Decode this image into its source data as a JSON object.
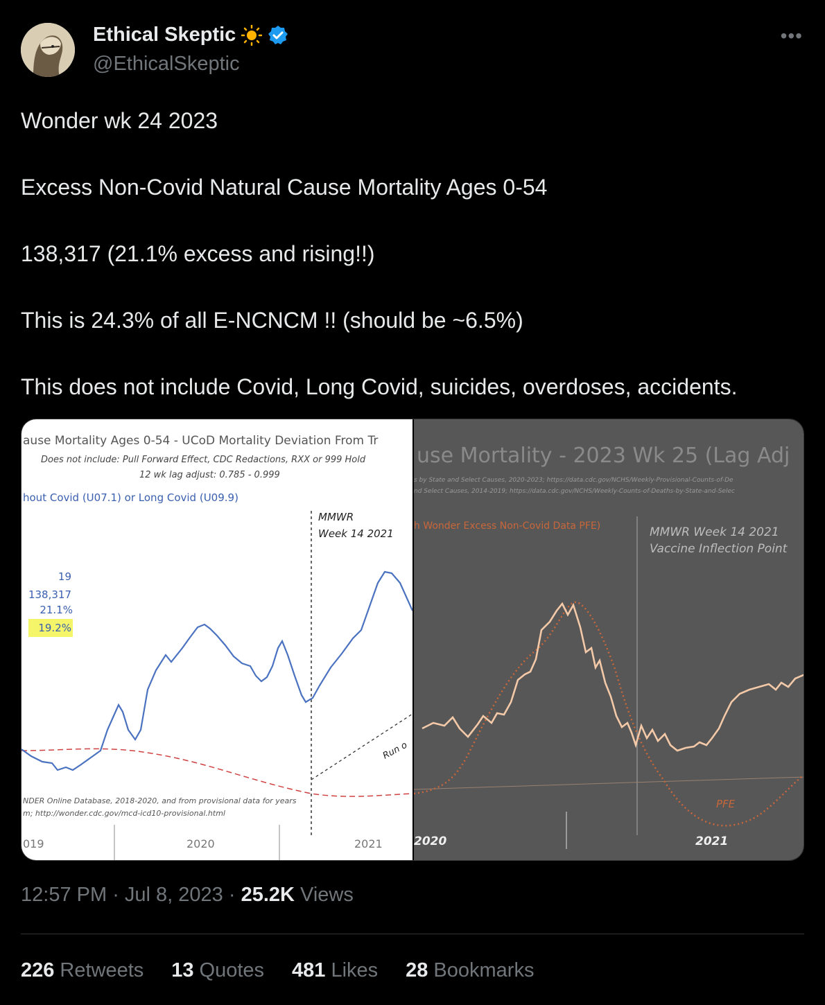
{
  "author": {
    "name": "Ethical Skeptic",
    "handle": "@EthicalSkeptic",
    "verified": true,
    "badge_color": "#1d9bf0",
    "emoji": "sun-icon"
  },
  "tweet": {
    "lines": [
      "Wonder wk 24 2023",
      "",
      "Excess Non-Covid Natural Cause Mortality Ages 0-54",
      "",
      "138,317 (21.1% excess and rising!!)",
      "",
      "This is 24.3% of all E-NCNCM !! (should be ~6.5%)",
      "",
      "This does not include Covid, Long Covid, suicides, overdoses, accidents."
    ]
  },
  "image_left": {
    "title": "ause Mortality Ages 0-54 - UCoD Mortality Deviation From Tr",
    "subtitle1": "Does not include: Pull Forward Effect,  CDC Redactions, RXX or 999 Hold",
    "subtitle2": "12 wk lag adjust: 0.785 - 0.999",
    "series_label": "hout Covid (U07.1) or Long Covid (U09.9)",
    "mmwr_1": "MMWR",
    "mmwr_2": "Week 14 2021",
    "stat_1": "19",
    "stat_2": "138,317",
    "stat_3": "21.1%",
    "stat_4": "19.2%",
    "run_label": "Run o",
    "source_1": "NDER Online Database, 2018-2020, and from provisional data for years",
    "source_2": "m; http://wonder.cdc.gov/mcd-icd10-provisional.html",
    "year_1": "019",
    "year_2": "2020",
    "year_3": "2021",
    "line_color": "#4a72c0",
    "baseline_color": "#d04040",
    "highlight_color": "#f5f56a"
  },
  "image_right": {
    "title": "use Mortality - 2023 Wk 25 (Lag Adj",
    "source_1": "s by State and Select Causes, 2020-2023; https://data.cdc.gov/NCHS/Weekly-Provisional-Counts-of-De",
    "source_2": "nd Select Causes, 2014-2019; https://data.cdc.gov/NCHS/Weekly-Counts-of-Deaths-by-State-and-Selec",
    "series_label": "h Wonder Excess Non-Covid Data PFE)",
    "mmwr_1": "MMWR Week 14 2021",
    "mmwr_2": "Vaccine Inflection Point",
    "pfe_label": "PFE",
    "year_1": "2020",
    "year_2": "2021",
    "line_color": "#f4c9a8",
    "dotted_color": "#c8673a",
    "background": "#575757"
  },
  "meta": {
    "time": "12:57 PM",
    "date": "Jul 8, 2023",
    "views_count": "25.2K",
    "views_label": "Views"
  },
  "stats": {
    "retweets_count": "226",
    "retweets_label": "Retweets",
    "quotes_count": "13",
    "quotes_label": "Quotes",
    "likes_count": "481",
    "likes_label": "Likes",
    "bookmarks_count": "28",
    "bookmarks_label": "Bookmarks"
  }
}
